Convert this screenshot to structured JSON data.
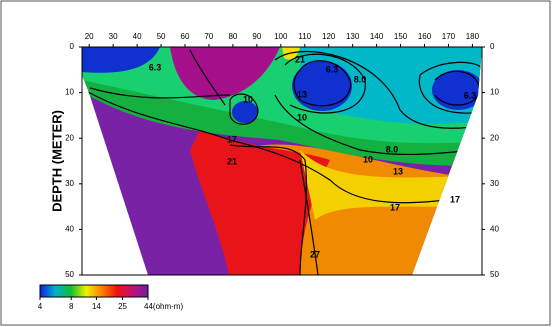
{
  "chart_data": {
    "type": "contour",
    "y_label": "DEPTH (METER)",
    "xlim": [
      17,
      184
    ],
    "xticks": [
      20,
      30,
      40,
      50,
      60,
      70,
      80,
      90,
      100,
      110,
      120,
      130,
      140,
      150,
      160,
      170,
      180
    ],
    "ylim": [
      0,
      50
    ],
    "yticks": [
      0,
      10,
      20,
      30,
      40,
      50
    ],
    "levels": [
      6.3,
      {
        "value": 8,
        "label": "8.0"
      },
      10,
      13,
      17,
      21,
      27
    ],
    "colorbar": {
      "lim": [
        4,
        44
      ],
      "log": true,
      "ticks": [
        4,
        8,
        14,
        25,
        {
          "value": 44,
          "label": "44(ohm-m)"
        }
      ],
      "colors": [
        "#1020e0",
        "#00b0d0",
        "#10c030",
        "#f0f000",
        "#ff8000",
        "#f01010",
        "#c0107a",
        "#7020a0"
      ]
    }
  }
}
